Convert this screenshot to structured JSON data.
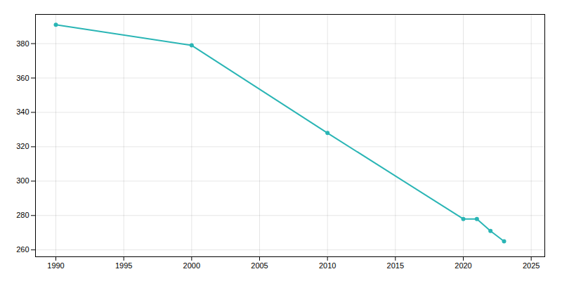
{
  "chart_data": {
    "type": "line",
    "x": [
      1990,
      2000,
      2010,
      2020,
      2021,
      2022,
      2023
    ],
    "values": [
      391,
      379,
      328,
      278,
      278,
      271,
      265
    ],
    "color": "#2ab5b5",
    "marker": "circle",
    "xlim": [
      1988.5,
      2026
    ],
    "xticks": [
      1990,
      1995,
      2000,
      2005,
      2010,
      2015,
      2020,
      2025
    ],
    "ylim": [
      256,
      397
    ],
    "yticks": [
      260,
      280,
      300,
      320,
      340,
      360,
      380
    ],
    "grid": true
  }
}
